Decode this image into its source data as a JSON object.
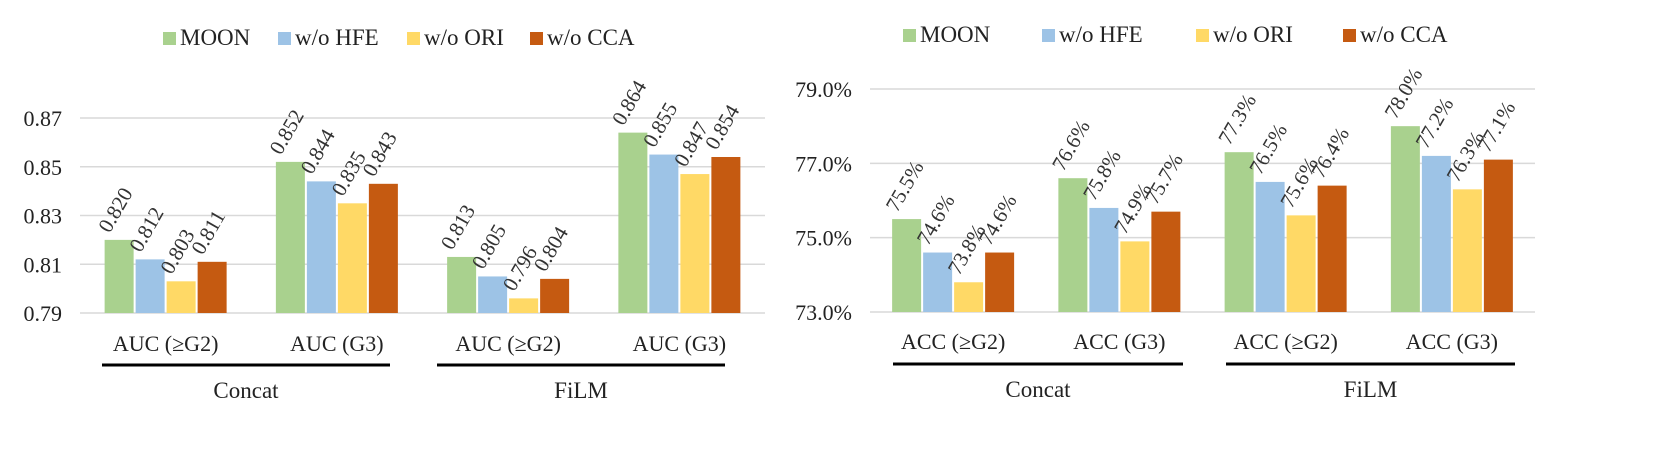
{
  "chart_data": [
    {
      "type": "bar",
      "series_names": [
        "MOON",
        "w/o HFE",
        "w/o ORI",
        "w/o CCA"
      ],
      "colors": [
        "#a9d18e",
        "#9dc3e6",
        "#ffd966",
        "#c55a11"
      ],
      "categories": [
        "AUC (≥G2)",
        "AUC (G3)",
        "AUC (≥G2)",
        "AUC (G3)"
      ],
      "groups": [
        {
          "label": "Concat"
        },
        {
          "label": "FiLM"
        }
      ],
      "series": [
        {
          "name": "MOON",
          "values": [
            0.82,
            0.852,
            0.813,
            0.864
          ]
        },
        {
          "name": "w/o HFE",
          "values": [
            0.812,
            0.844,
            0.805,
            0.855
          ]
        },
        {
          "name": "w/o ORI",
          "values": [
            0.803,
            0.835,
            0.796,
            0.847
          ]
        },
        {
          "name": "w/o CCA",
          "values": [
            0.811,
            0.843,
            0.804,
            0.854
          ]
        }
      ],
      "labels": [
        [
          "0.820",
          "0.852",
          "0.813",
          "0.864"
        ],
        [
          "0.812",
          "0.844",
          "0.805",
          "0.855"
        ],
        [
          "0.803",
          "0.835",
          "0.796",
          "0.847"
        ],
        [
          "0.811",
          "0.843",
          "0.804",
          "0.854"
        ]
      ],
      "ylim": [
        0.79,
        0.87
      ],
      "yticks": [
        0.79,
        0.81,
        0.83,
        0.85,
        0.87
      ],
      "ytick_labels": [
        "0.79",
        "0.81",
        "0.83",
        "0.85",
        "0.87"
      ],
      "grid": true,
      "legend": "top"
    },
    {
      "type": "bar",
      "series_names": [
        "MOON",
        "w/o HFE",
        "w/o ORI",
        "w/o CCA"
      ],
      "colors": [
        "#a9d18e",
        "#9dc3e6",
        "#ffd966",
        "#c55a11"
      ],
      "categories": [
        "ACC (≥G2)",
        "ACC (G3)",
        "ACC (≥G2)",
        "ACC (G3)"
      ],
      "groups": [
        {
          "label": "Concat"
        },
        {
          "label": "FiLM"
        }
      ],
      "series": [
        {
          "name": "MOON",
          "values": [
            75.5,
            76.6,
            77.3,
            78.0
          ]
        },
        {
          "name": "w/o HFE",
          "values": [
            74.6,
            75.8,
            76.5,
            77.2
          ]
        },
        {
          "name": "w/o ORI",
          "values": [
            73.8,
            74.9,
            75.6,
            76.3
          ]
        },
        {
          "name": "w/o CCA",
          "values": [
            74.6,
            75.7,
            76.4,
            77.1
          ]
        }
      ],
      "labels": [
        [
          "75.5%",
          "76.6%",
          "77.3%",
          "78.0%"
        ],
        [
          "74.6%",
          "75.8%",
          "76.5%",
          "77.2%"
        ],
        [
          "73.8%",
          "74.9%",
          "75.6%",
          "76.3%"
        ],
        [
          "74.6%",
          "75.7%",
          "76.4%",
          "77.1%"
        ]
      ],
      "ylim": [
        73.0,
        79.0
      ],
      "yticks": [
        73.0,
        75.0,
        77.0,
        79.0
      ],
      "ytick_labels": [
        "73.0%",
        "75.0%",
        "77.0%",
        "79.0%"
      ],
      "grid": true,
      "legend": "top"
    }
  ]
}
